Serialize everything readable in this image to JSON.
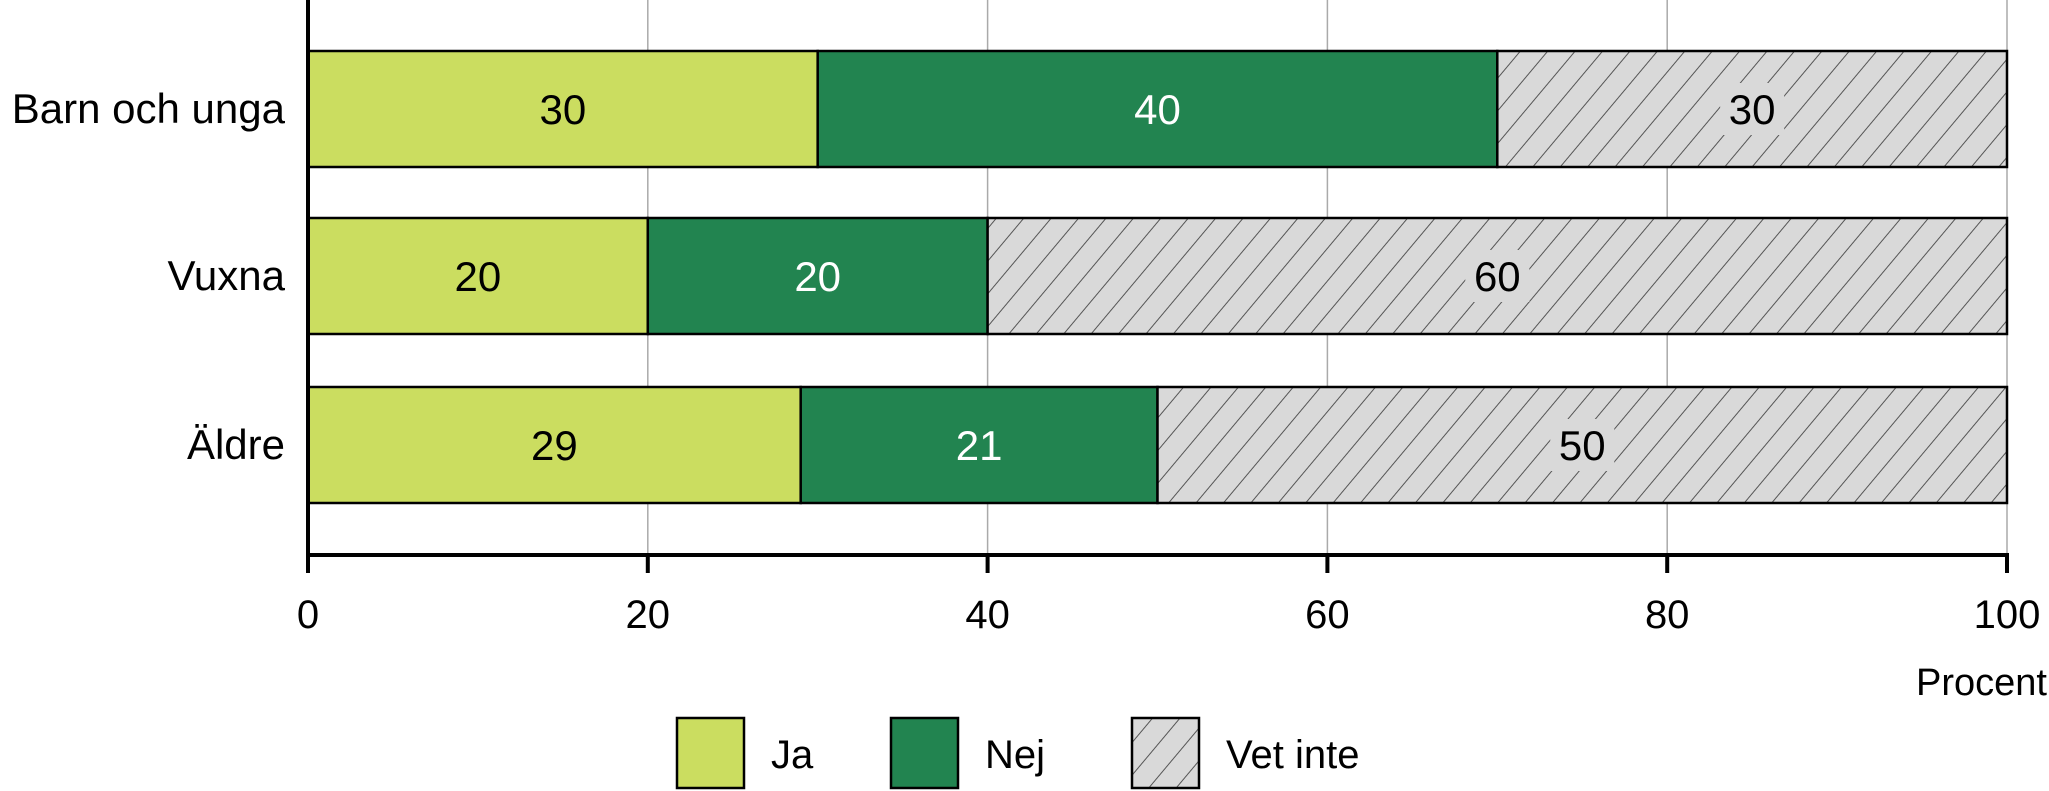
{
  "chart_data": {
    "type": "bar",
    "orientation": "horizontal",
    "stacked": true,
    "categories": [
      "Barn och unga",
      "Vuxna",
      "Äldre"
    ],
    "series": [
      {
        "name": "Ja",
        "values": [
          30,
          20,
          29
        ],
        "color": "#cbdd60",
        "pattern": "solid",
        "label_color": "#000000"
      },
      {
        "name": "Nej",
        "values": [
          40,
          20,
          21
        ],
        "color": "#228450",
        "pattern": "solid",
        "label_color": "#ffffff"
      },
      {
        "name": "Vet inte",
        "values": [
          30,
          60,
          50
        ],
        "color": "#d9d9d9",
        "pattern": "diagonal-hatch",
        "label_color": "#000000"
      }
    ],
    "xlabel": "Procent",
    "xlim": [
      0,
      100
    ],
    "xticks": [
      0,
      20,
      40,
      60,
      80,
      100
    ],
    "grid": "vertical",
    "legend": "bottom-center"
  }
}
